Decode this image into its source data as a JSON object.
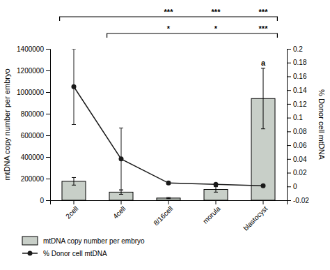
{
  "chart_data": {
    "type": "bar",
    "categories": [
      "2cell",
      "4cell",
      "8/16cell",
      "morula",
      "blastocyst"
    ],
    "series": [
      {
        "name": "mtDNA copy number per embryo",
        "type": "bar",
        "color": "#c8cfc8",
        "values": [
          175000,
          75000,
          20000,
          100000,
          940000
        ],
        "errors": [
          35000,
          20000,
          5000,
          25000,
          280000
        ]
      },
      {
        "name": "% Donor cell mtDNA",
        "type": "line",
        "axis": "y2",
        "color": "#1a1a1a",
        "marker": "circle",
        "line_style": "solid",
        "values": [
          0.145,
          0.04,
          0.005,
          0.003,
          0.001
        ],
        "errors": [
          0.055,
          0.045,
          0.002,
          0.001,
          0.0005
        ]
      }
    ],
    "ylabel": "mtDNA copy number per embryo",
    "y2label": "% Donor cell mtDNA",
    "ylim": [
      0,
      1400000
    ],
    "yticks": [
      0,
      200000,
      400000,
      600000,
      800000,
      1000000,
      1200000,
      1400000
    ],
    "y2lim": [
      -0.02,
      0.2
    ],
    "y2ticks": [
      -0.02,
      0,
      0.02,
      0.04,
      0.06,
      0.08,
      0.1,
      0.12,
      0.14,
      0.16,
      0.18,
      0.2
    ],
    "annotations": [
      {
        "text": "a",
        "category": "blastocyst"
      }
    ],
    "brackets": [
      {
        "from": "2cell",
        "to": "blastocyst",
        "labels": [
          "***",
          "***",
          "***"
        ],
        "categories": [
          "8/16cell",
          "morula",
          "blastocyst"
        ]
      },
      {
        "from": "4cell",
        "to": "blastocyst",
        "labels": [
          "*",
          "*",
          "***"
        ],
        "categories": [
          "8/16cell",
          "morula",
          "blastocyst"
        ]
      }
    ],
    "grid": false,
    "legend": "bottom"
  }
}
